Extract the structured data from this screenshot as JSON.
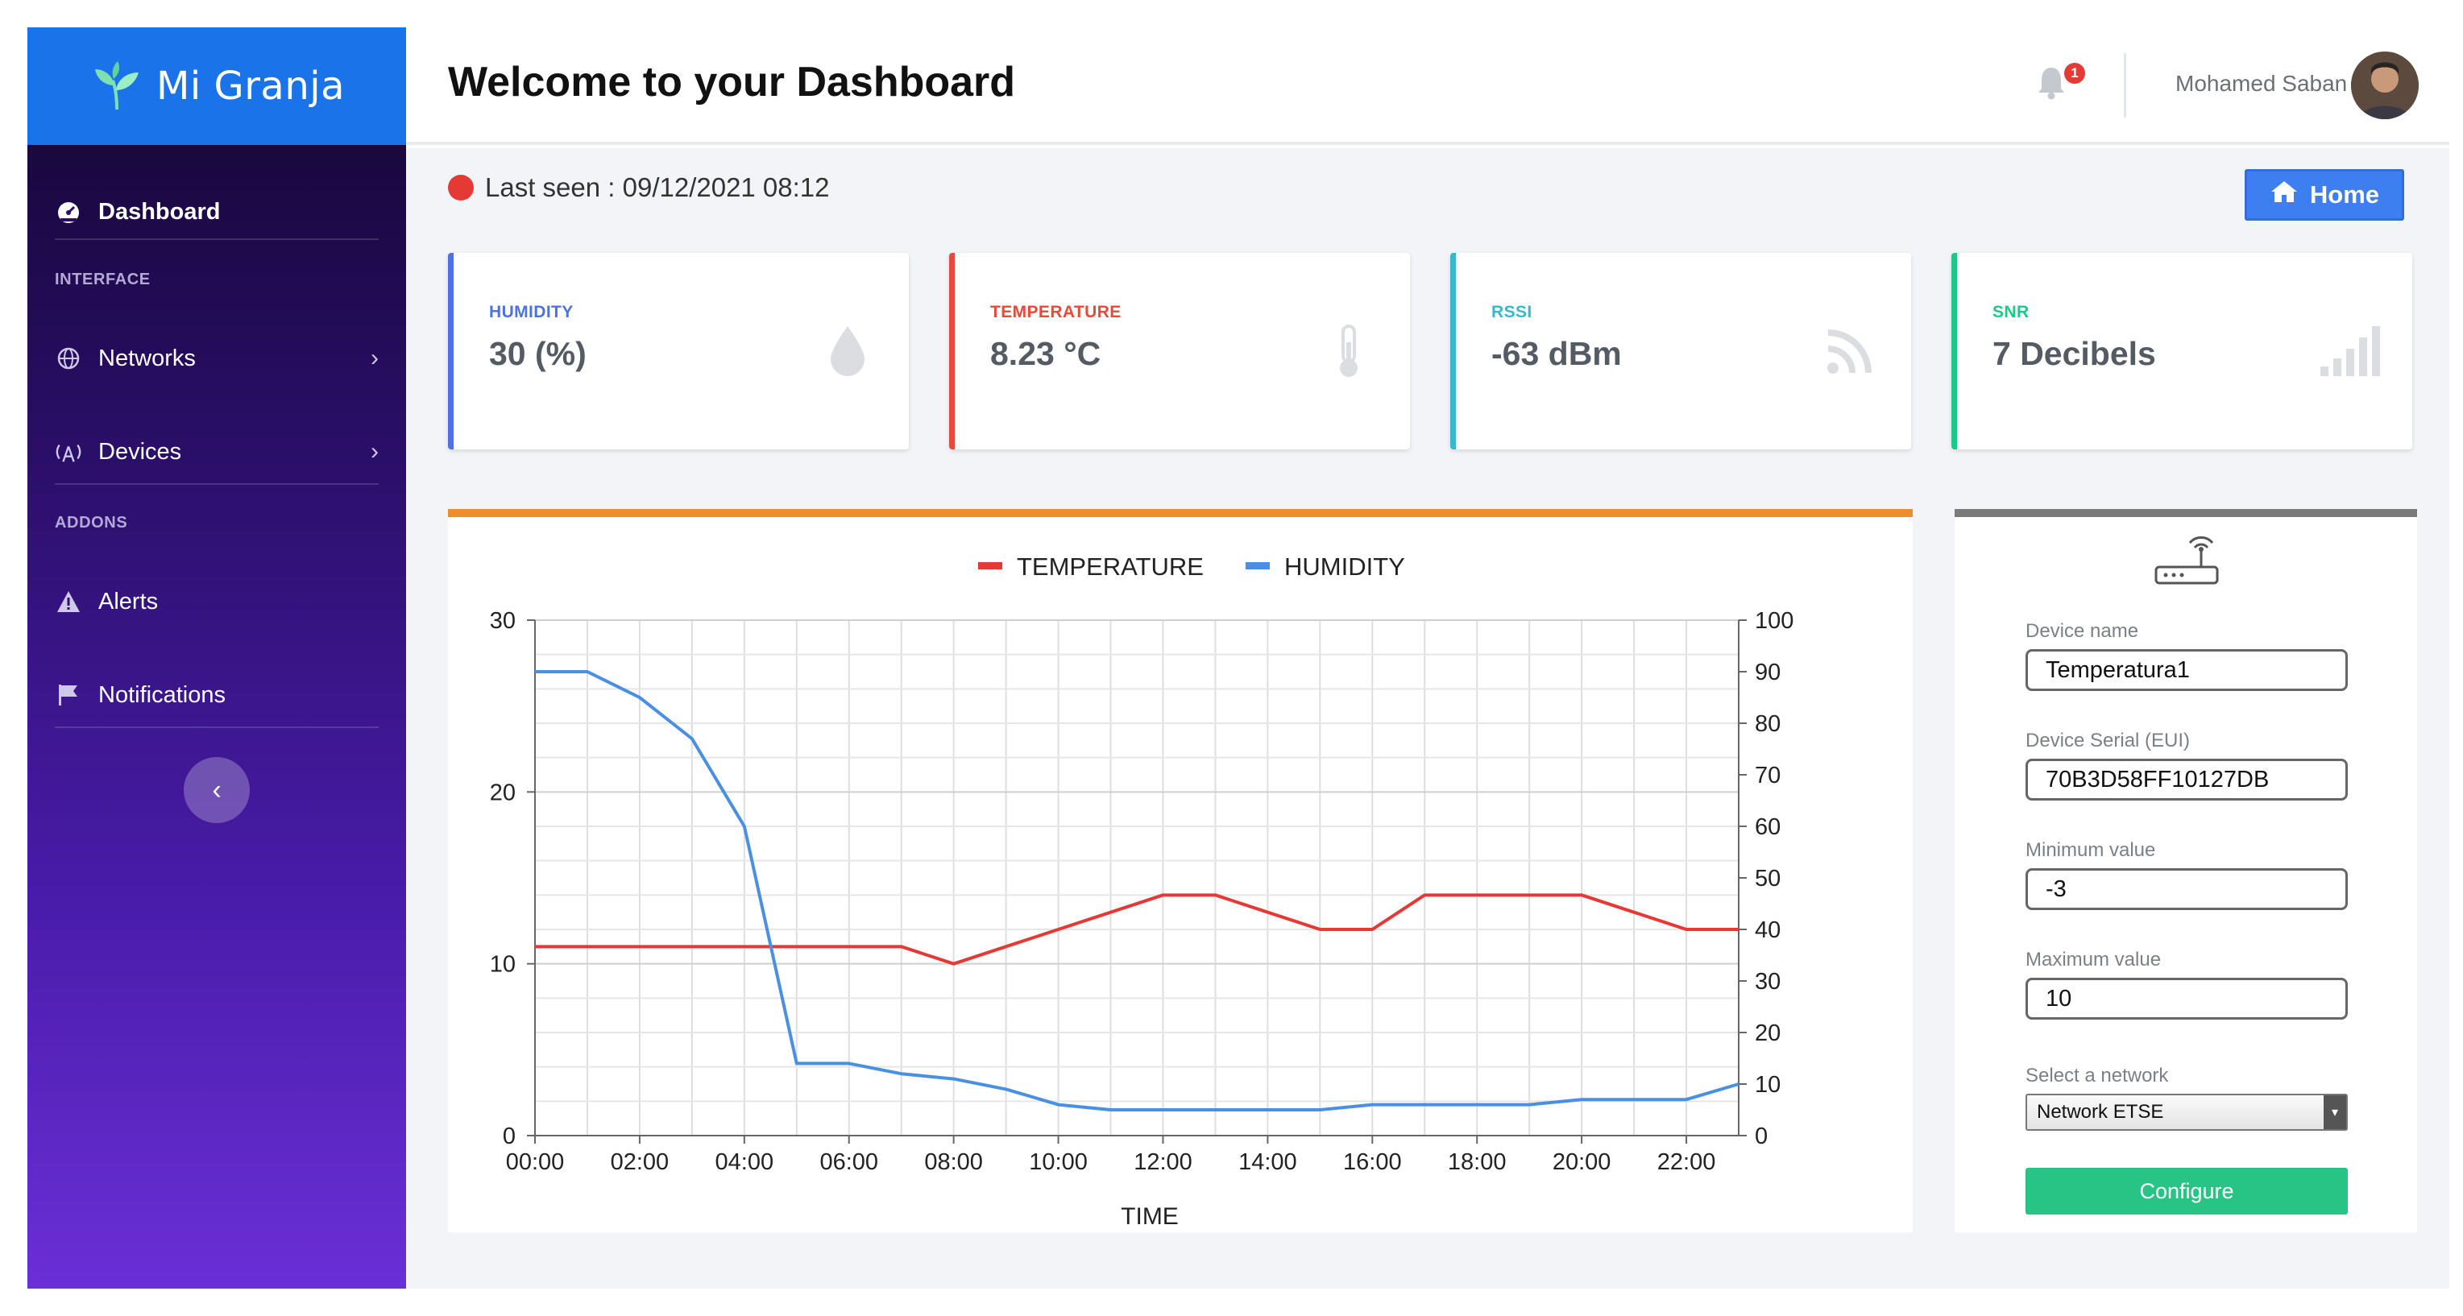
{
  "brand": {
    "name": "Mi Granja"
  },
  "sidebar": {
    "dashboard": "Dashboard",
    "section_interface": "INTERFACE",
    "networks": "Networks",
    "devices": "Devices",
    "section_addons": "ADDONS",
    "alerts": "Alerts",
    "notifications": "Notifications"
  },
  "header": {
    "title": "Welcome to your Dashboard",
    "notification_count": "1",
    "user_name": "Mohamed Saban"
  },
  "status": {
    "last_seen": "Last seen : 09/12/2021 08:12"
  },
  "home_button": {
    "label": "Home"
  },
  "cards": [
    {
      "label": "HUMIDITY",
      "value": "30 (%)",
      "color": "#4e73df",
      "icon": "water-drop-icon"
    },
    {
      "label": "TEMPERATURE",
      "value": "8.23 °C",
      "color": "#e74a3b",
      "icon": "thermometer-icon"
    },
    {
      "label": "RSSI",
      "value": "-63 dBm",
      "color": "#36b9cc",
      "icon": "rss-icon"
    },
    {
      "label": "SNR",
      "value": "7 Decibels",
      "color": "#1cc88a",
      "icon": "signal-bars-icon"
    }
  ],
  "device": {
    "name_label": "Device name",
    "name_value": "Temperatura1",
    "serial_label": "Device Serial (EUI)",
    "serial_value": "70B3D58FF10127DB",
    "min_label": "Minimum value",
    "min_value": "-3",
    "max_label": "Maximum value",
    "max_value": "10",
    "network_label": "Select a network",
    "network_value": "Network ETSE",
    "configure_label": "Configure"
  },
  "chart_data": {
    "type": "line",
    "xlabel": "TIME",
    "x": [
      "00:00",
      "01:00",
      "02:00",
      "03:00",
      "04:00",
      "05:00",
      "06:00",
      "07:00",
      "08:00",
      "09:00",
      "10:00",
      "11:00",
      "12:00",
      "13:00",
      "14:00",
      "15:00",
      "16:00",
      "17:00",
      "18:00",
      "19:00",
      "20:00",
      "21:00",
      "22:00",
      "23:00"
    ],
    "x_ticks": [
      "00:00",
      "02:00",
      "04:00",
      "06:00",
      "08:00",
      "10:00",
      "12:00",
      "14:00",
      "16:00",
      "18:00",
      "20:00",
      "22:00"
    ],
    "y_left": {
      "lim": [
        0,
        30
      ],
      "ticks": [
        0,
        10,
        20,
        30
      ]
    },
    "y_right": {
      "lim": [
        0,
        100
      ],
      "ticks": [
        0,
        10,
        20,
        30,
        40,
        50,
        60,
        70,
        80,
        90,
        100
      ]
    },
    "grid": true,
    "legend_position": "top-center",
    "series": [
      {
        "name": "TEMPERATURE",
        "color": "#e53935",
        "axis": "left",
        "values": [
          11,
          11,
          11,
          11,
          11,
          11,
          11,
          11,
          10,
          11,
          12,
          13,
          14,
          14,
          13,
          12,
          12,
          14,
          14,
          14,
          14,
          13,
          12,
          12
        ]
      },
      {
        "name": "HUMIDITY",
        "color": "#4a90e2",
        "axis": "right",
        "values": [
          90,
          90,
          85,
          77,
          60,
          14,
          14,
          12,
          11,
          9,
          6,
          5,
          5,
          5,
          5,
          5,
          6,
          6,
          6,
          6,
          7,
          7,
          7,
          10
        ]
      }
    ]
  }
}
